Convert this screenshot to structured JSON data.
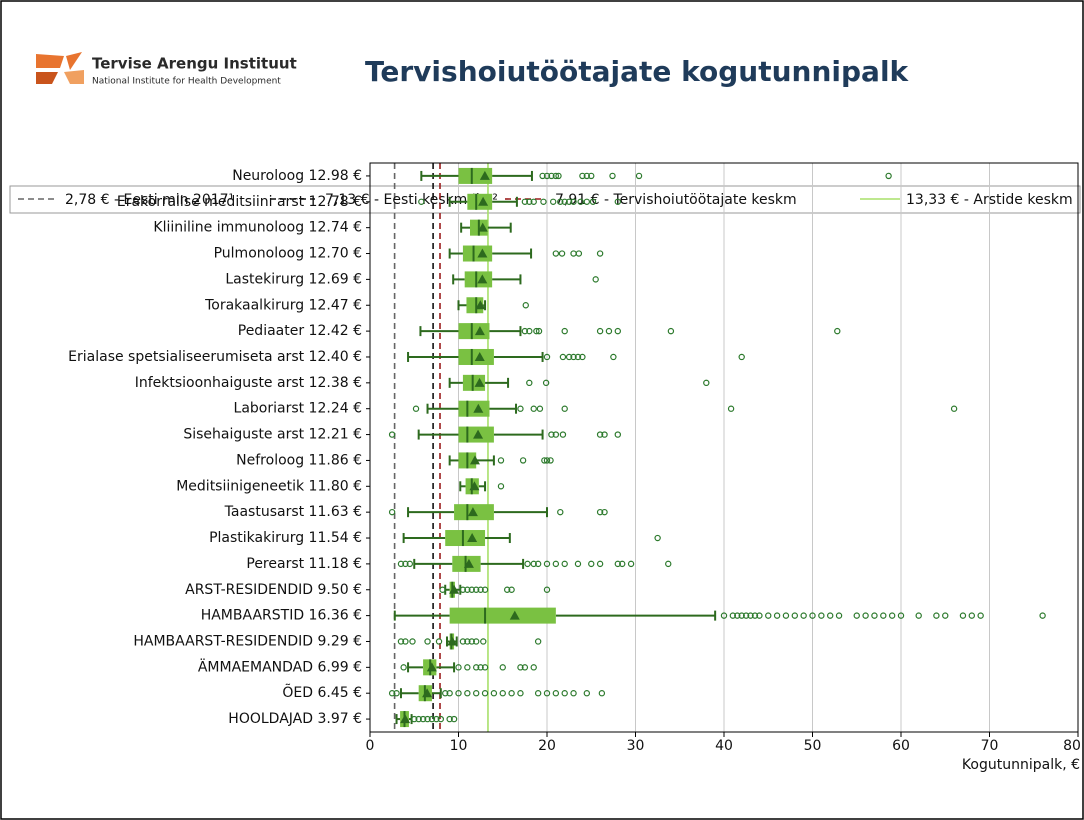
{
  "header": {
    "logo_name": "Tervise Arengu Instituut",
    "logo_subtitle": "National Institute for Health Development"
  },
  "chart_data": {
    "type": "box",
    "title": "Tervishoiutöötajate kogutunnipalk",
    "x_label": "Kogutunnipalk, €",
    "xlim": [
      0,
      80
    ],
    "xticks": [
      0,
      10,
      20,
      30,
      40,
      50,
      60,
      70,
      80
    ],
    "grid": true,
    "color": "#7ac142",
    "edge_color": "#2d6a1e",
    "reference_lines": [
      {
        "label": "2,78 € - Eesti min 2017¹",
        "value": 2.78,
        "color": "#666666",
        "dash": "6,4"
      },
      {
        "label": "7,13 € - Eesti keskm Ikv²",
        "value": 7.13,
        "color": "#111111",
        "dash": "6,4"
      },
      {
        "label": "7,91 € - Tervishoiutöötajate keskm",
        "value": 7.91,
        "color": "#9b1c1c",
        "dash": "6,4"
      },
      {
        "label": "13,33 € - Arstide keskm",
        "value": 13.33,
        "color": "#a8e06a",
        "dash": ""
      }
    ],
    "categories": [
      "Neuroloog 12.98 €",
      "Erakorralise meditsiini arst 12.78 €",
      "Kliiniline immunoloog 12.74 €",
      "Pulmonoloog 12.70 €",
      "Lastekirurg 12.69 €",
      "Torakaalkirurg 12.47 €",
      "Pediaater 12.42 €",
      "Erialase spetsialiseerumiseta arst 12.40 €",
      "Infektsioonhaiguste arst 12.38 €",
      "Laboriarst 12.24 €",
      "Sisehaiguste arst 12.21 €",
      "Nefroloog 11.86 €",
      "Meditsiinigeneetik 11.80 €",
      "Taastusarst 11.63 €",
      "Plastikakirurg 11.54 €",
      "Perearst 11.18 €",
      "ARST-RESIDENDID 9.50 €",
      "HAMBAARSTID 16.36 €",
      "HAMBAARST-RESIDENDID 9.29 €",
      "ÄMMAEMANDAD 6.99 €",
      "ÕED 6.45 €",
      "HOOLDAJAD 3.97 €"
    ],
    "boxes": [
      {
        "whisker_low": 5.8,
        "q1": 10,
        "median": 11.5,
        "q3": 13.8,
        "whisker_high": 18.3,
        "mean": 12.98,
        "outliers": [
          19.5,
          20,
          20.5,
          21,
          21.3,
          24,
          24.5,
          25,
          27.4,
          30.4,
          58.6
        ]
      },
      {
        "whisker_low": 9,
        "q1": 11,
        "median": 12,
        "q3": 13.8,
        "whisker_high": 16.6,
        "mean": 12.78,
        "outliers": [
          5.8,
          17.5,
          18,
          18.5,
          19.6,
          20.7,
          21.5,
          22,
          22.5,
          23,
          23.8,
          24.5,
          25.2,
          28
        ]
      },
      {
        "whisker_low": 10.3,
        "q1": 11.3,
        "median": 12.3,
        "q3": 13.3,
        "whisker_high": 15.9,
        "mean": 12.74,
        "outliers": []
      },
      {
        "whisker_low": 9,
        "q1": 10.5,
        "median": 11.7,
        "q3": 13.8,
        "whisker_high": 18.2,
        "mean": 12.7,
        "outliers": [
          21,
          21.7,
          23,
          23.6,
          26
        ]
      },
      {
        "whisker_low": 9.4,
        "q1": 10.7,
        "median": 12,
        "q3": 13.8,
        "whisker_high": 17,
        "mean": 12.69,
        "outliers": [
          25.5
        ]
      },
      {
        "whisker_low": 10,
        "q1": 10.9,
        "median": 12,
        "q3": 12.8,
        "whisker_high": 13,
        "mean": 12.47,
        "outliers": [
          17.6
        ]
      },
      {
        "whisker_low": 5.7,
        "q1": 10,
        "median": 11.5,
        "q3": 13.5,
        "whisker_high": 17,
        "mean": 12.42,
        "outliers": [
          17.5,
          18,
          18.8,
          19.1,
          22,
          26,
          27,
          28,
          34,
          52.8
        ]
      },
      {
        "whisker_low": 4.3,
        "q1": 10,
        "median": 11.5,
        "q3": 14,
        "whisker_high": 19.5,
        "mean": 12.4,
        "outliers": [
          20,
          21.8,
          22.5,
          23,
          23.5,
          24,
          27.5,
          42
        ]
      },
      {
        "whisker_low": 9,
        "q1": 10.5,
        "median": 11.6,
        "q3": 13,
        "whisker_high": 15.6,
        "mean": 12.38,
        "outliers": [
          18,
          19.9,
          38
        ]
      },
      {
        "whisker_low": 6.5,
        "q1": 10,
        "median": 11,
        "q3": 13.5,
        "whisker_high": 16.5,
        "mean": 12.24,
        "outliers": [
          5.2,
          17,
          18.5,
          19.2,
          22,
          40.8,
          66
        ]
      },
      {
        "whisker_low": 5.5,
        "q1": 10,
        "median": 11,
        "q3": 14,
        "whisker_high": 19.5,
        "mean": 12.21,
        "outliers": [
          2.5,
          20.5,
          21,
          21.8,
          26,
          26.5,
          28
        ]
      },
      {
        "whisker_low": 9,
        "q1": 10,
        "median": 11,
        "q3": 12,
        "whisker_high": 14,
        "mean": 11.86,
        "outliers": [
          14.8,
          17.3,
          19.7,
          20,
          20.4
        ]
      },
      {
        "whisker_low": 10.2,
        "q1": 10.8,
        "median": 11.5,
        "q3": 12.3,
        "whisker_high": 13,
        "mean": 11.8,
        "outliers": [
          14.8
        ]
      },
      {
        "whisker_low": 4.3,
        "q1": 9.5,
        "median": 11,
        "q3": 14,
        "whisker_high": 20,
        "mean": 11.63,
        "outliers": [
          2.5,
          21.5,
          26,
          26.5
        ]
      },
      {
        "whisker_low": 3.8,
        "q1": 8.5,
        "median": 10.5,
        "q3": 13,
        "whisker_high": 15.8,
        "mean": 11.54,
        "outliers": [
          32.5
        ]
      },
      {
        "whisker_low": 5,
        "q1": 9.3,
        "median": 10.8,
        "q3": 12.5,
        "whisker_high": 17.3,
        "mean": 11.18,
        "outliers": [
          3.5,
          4,
          4.5,
          17.8,
          18.5,
          19,
          20,
          21,
          22,
          23.5,
          25,
          26,
          28,
          28.5,
          29.5,
          33.7
        ]
      },
      {
        "whisker_low": 8.5,
        "q1": 9,
        "median": 9.3,
        "q3": 9.6,
        "whisker_high": 10.2,
        "mean": 9.5,
        "outliers": [
          8.2,
          10.5,
          11,
          11.5,
          12,
          12.5,
          13,
          15.5,
          16,
          20
        ]
      },
      {
        "whisker_low": 2.8,
        "q1": 9,
        "median": 13,
        "q3": 21,
        "whisker_high": 39,
        "mean": 16.36,
        "outliers": [
          40,
          41,
          41.5,
          42,
          42.5,
          43,
          43.5,
          44,
          45,
          46,
          47,
          48,
          49,
          50,
          51,
          52,
          53,
          55,
          56,
          57,
          58,
          59,
          60,
          62,
          64,
          65,
          67,
          68,
          69,
          76
        ]
      },
      {
        "whisker_low": 8.7,
        "q1": 9,
        "median": 9.2,
        "q3": 9.5,
        "whisker_high": 9.8,
        "mean": 9.29,
        "outliers": [
          3.5,
          4,
          4.8,
          6.5,
          7.8,
          10.5,
          11,
          11.5,
          12,
          12.8,
          19
        ]
      },
      {
        "whisker_low": 4.3,
        "q1": 6,
        "median": 6.8,
        "q3": 7.5,
        "whisker_high": 9.5,
        "mean": 6.99,
        "outliers": [
          3.8,
          10,
          11,
          12,
          12.5,
          13,
          15,
          17,
          17.5,
          18.5
        ]
      },
      {
        "whisker_low": 3.5,
        "q1": 5.5,
        "median": 6.2,
        "q3": 7,
        "whisker_high": 8,
        "mean": 6.45,
        "outliers": [
          2.5,
          3,
          8.5,
          9,
          10,
          11,
          12,
          13,
          14,
          15,
          16,
          17,
          19,
          20,
          21,
          22,
          23,
          24.5,
          26.2
        ]
      },
      {
        "whisker_low": 3,
        "q1": 3.4,
        "median": 3.9,
        "q3": 4.4,
        "whisker_high": 4.7,
        "mean": 3.97,
        "outliers": [
          5,
          5.5,
          6,
          6.5,
          7,
          7.5,
          8,
          9,
          9.5
        ]
      }
    ]
  }
}
